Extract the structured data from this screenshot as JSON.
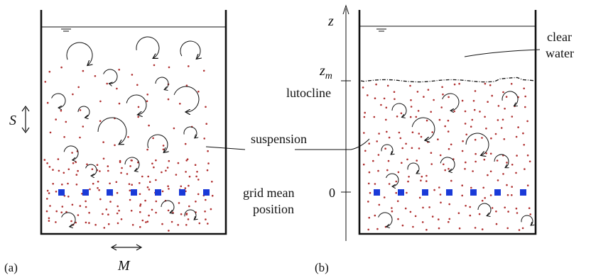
{
  "panel_a": {
    "label": "(a)",
    "stroke_label": "S",
    "mesh_label": "M"
  },
  "panel_b": {
    "label": "(b)",
    "axis_z": "z",
    "axis_zm": "z",
    "axis_zm_sub": "m",
    "axis_zero": "0",
    "clear_water_line1": "clear",
    "clear_water_line2": "water",
    "lutocline": "lutocline"
  },
  "shared": {
    "suspension": "suspension",
    "grid_line1": "grid mean",
    "grid_line2": "position"
  },
  "colors": {
    "particle": "#b03030",
    "grid_bar": "#1a3ad8",
    "ink": "#111111"
  }
}
